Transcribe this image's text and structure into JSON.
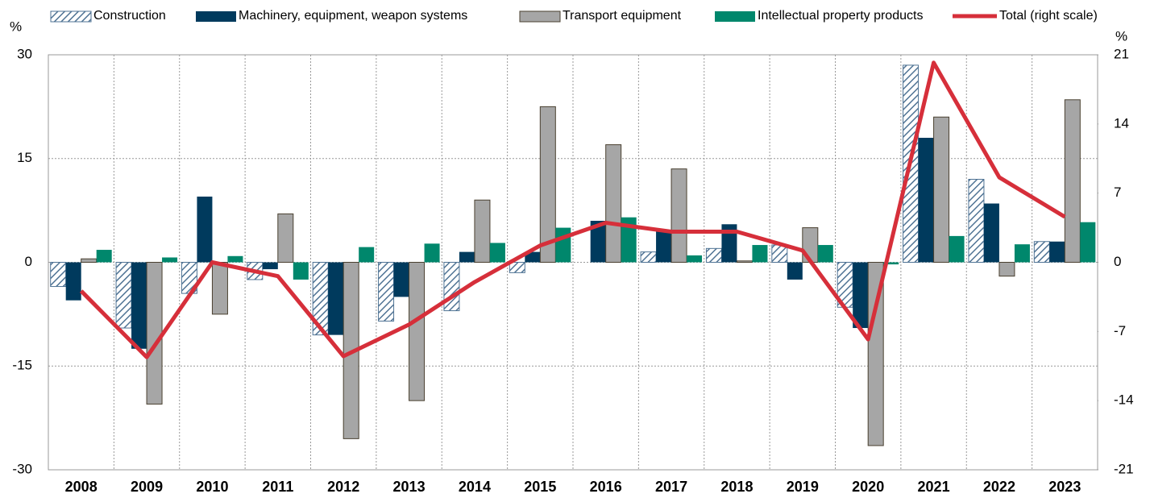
{
  "chart_data": {
    "type": "bar",
    "ylabel": "%",
    "y2label": "%",
    "categories": [
      "2008",
      "2009",
      "2010",
      "2011",
      "2012",
      "2013",
      "2014",
      "2015",
      "2016",
      "2017",
      "2018",
      "2019",
      "2020",
      "2021",
      "2022",
      "2023"
    ],
    "series": [
      {
        "name": "Construction",
        "color": "#4f7394",
        "pattern": "hatch",
        "values": [
          -3.5,
          -9.5,
          -4.5,
          -2.5,
          -10.5,
          -8.5,
          -7,
          -1.5,
          0,
          1.5,
          2,
          2.5,
          -6.5,
          28.5,
          12,
          3
        ]
      },
      {
        "name": "Machinery, equipment, weapon systems",
        "color": "#003a5d",
        "values": [
          -5.5,
          -12.5,
          9.5,
          -1,
          -10.5,
          -5,
          1.5,
          1.5,
          6,
          4.5,
          5.5,
          -2.5,
          -9.5,
          18,
          8.5,
          3
        ]
      },
      {
        "name": "Transport equipment",
        "color": "#a6a6a6",
        "values": [
          0.5,
          -20.5,
          -7.5,
          7,
          -25.5,
          -20,
          9,
          22.5,
          17,
          13.5,
          0.2,
          5,
          -26.5,
          21,
          -2,
          23.5
        ]
      },
      {
        "name": "Intellectual property products",
        "color": "#00876c",
        "values": [
          1.8,
          0.7,
          0.9,
          -2.5,
          2.2,
          2.7,
          2.8,
          5,
          6.5,
          1,
          2.5,
          2.5,
          -0.3,
          3.8,
          2.6,
          5.8
        ]
      },
      {
        "name": "Total (right scale)",
        "type": "line",
        "axis": "y2",
        "color": "#d62f3a",
        "values": [
          -2.9,
          -9.6,
          0,
          -1.4,
          -9.5,
          -6.3,
          -2,
          1.7,
          4,
          3.1,
          3.1,
          1.2,
          -7.8,
          20.2,
          8.6,
          4.6
        ]
      }
    ],
    "ylim": [
      -30,
      30
    ],
    "yticks": [
      -30,
      -15,
      0,
      15,
      30
    ],
    "y2lim": [
      -21,
      21
    ],
    "y2ticks": [
      -21,
      -14,
      -7,
      0,
      7,
      14,
      21
    ],
    "grid": true,
    "legend": "top"
  }
}
